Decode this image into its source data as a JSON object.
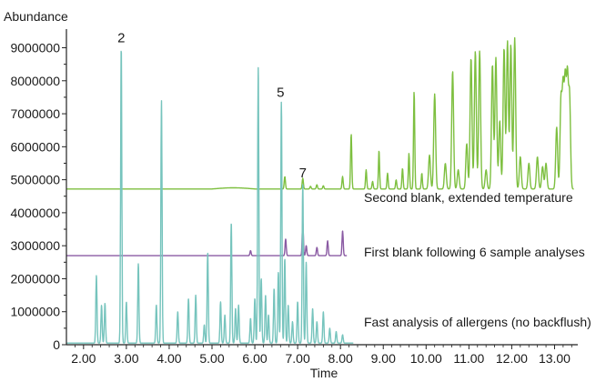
{
  "chart_data": {
    "type": "line",
    "xlabel": "Time",
    "ylabel": "Abundance",
    "xlim": [
      1.6,
      13.5
    ],
    "ylim": [
      0,
      9400000
    ],
    "x_ticks": [
      "2.00",
      "3.00",
      "4.00",
      "5.00",
      "6.00",
      "7.00",
      "8.00",
      "9.00",
      "10.00",
      "11.00",
      "12.00",
      "13.00"
    ],
    "y_ticks": [
      "0",
      "1000000",
      "2000000",
      "3000000",
      "4000000",
      "5000000",
      "6000000",
      "7000000",
      "8000000",
      "9000000"
    ],
    "annotations": [
      {
        "text": "2",
        "x": 2.88,
        "y": 9000000
      },
      {
        "text": "5",
        "x": 6.6,
        "y": 7350000
      },
      {
        "text": "7",
        "x": 7.12,
        "y": 4900000
      }
    ],
    "series": [
      {
        "name": "Second blank, extended temperature",
        "color": "#7dbf3f",
        "baseline": 4720000,
        "x_range": [
          1.6,
          13.45
        ],
        "peaks": [
          {
            "x": 6.7,
            "y": 5100000
          },
          {
            "x": 7.12,
            "y": 5050000
          },
          {
            "x": 7.3,
            "y": 4800000
          },
          {
            "x": 7.45,
            "y": 4850000
          },
          {
            "x": 7.6,
            "y": 4820000
          },
          {
            "x": 8.05,
            "y": 5100000
          },
          {
            "x": 8.25,
            "y": 6400000
          },
          {
            "x": 8.6,
            "y": 5300000
          },
          {
            "x": 8.75,
            "y": 4950000
          },
          {
            "x": 8.9,
            "y": 5900000
          },
          {
            "x": 9.1,
            "y": 5200000
          },
          {
            "x": 9.3,
            "y": 5000000
          },
          {
            "x": 9.45,
            "y": 5350000
          },
          {
            "x": 9.6,
            "y": 5800000
          },
          {
            "x": 9.72,
            "y": 7700000
          },
          {
            "x": 9.9,
            "y": 5200000
          },
          {
            "x": 10.08,
            "y": 5750000
          },
          {
            "x": 10.2,
            "y": 7600000
          },
          {
            "x": 10.45,
            "y": 5500000
          },
          {
            "x": 10.62,
            "y": 8300000
          },
          {
            "x": 10.75,
            "y": 5300000
          },
          {
            "x": 10.95,
            "y": 6100000
          },
          {
            "x": 11.05,
            "y": 8700000
          },
          {
            "x": 11.15,
            "y": 8900000
          },
          {
            "x": 11.25,
            "y": 8900000
          },
          {
            "x": 11.4,
            "y": 5300000
          },
          {
            "x": 11.55,
            "y": 8500000
          },
          {
            "x": 11.63,
            "y": 8700000
          },
          {
            "x": 11.72,
            "y": 6800000
          },
          {
            "x": 11.82,
            "y": 9000000
          },
          {
            "x": 11.9,
            "y": 9200000
          },
          {
            "x": 11.98,
            "y": 9100000
          },
          {
            "x": 12.07,
            "y": 9300000
          },
          {
            "x": 12.2,
            "y": 5700000
          },
          {
            "x": 12.4,
            "y": 5500000
          },
          {
            "x": 12.6,
            "y": 5700000
          },
          {
            "x": 12.72,
            "y": 5400000
          },
          {
            "x": 12.8,
            "y": 5500000
          },
          {
            "x": 13.05,
            "y": 6600000
          },
          {
            "x": 13.15,
            "y": 7400000
          },
          {
            "x": 13.2,
            "y": 7700000
          },
          {
            "x": 13.25,
            "y": 7900000
          },
          {
            "x": 13.3,
            "y": 8000000
          },
          {
            "x": 13.35,
            "y": 7500000
          }
        ]
      },
      {
        "name": "First blank following 6 sample analyses",
        "color": "#8a5aa3",
        "baseline": 2700000,
        "x_range": [
          1.6,
          8.15
        ],
        "peaks": [
          {
            "x": 5.9,
            "y": 2850000
          },
          {
            "x": 6.72,
            "y": 3200000
          },
          {
            "x": 7.12,
            "y": 3700000
          },
          {
            "x": 7.2,
            "y": 3000000
          },
          {
            "x": 7.45,
            "y": 2950000
          },
          {
            "x": 7.7,
            "y": 3150000
          },
          {
            "x": 8.05,
            "y": 3450000
          }
        ]
      },
      {
        "name": "Fast analysis of allergens (no backflush)",
        "color": "#76c4bd",
        "baseline": 50000,
        "x_range": [
          1.6,
          8.3
        ],
        "peaks": [
          {
            "x": 2.3,
            "y": 2100000
          },
          {
            "x": 2.42,
            "y": 1200000
          },
          {
            "x": 2.5,
            "y": 1250000
          },
          {
            "x": 2.88,
            "y": 9000000
          },
          {
            "x": 3.0,
            "y": 1300000
          },
          {
            "x": 3.28,
            "y": 2450000
          },
          {
            "x": 3.7,
            "y": 1200000
          },
          {
            "x": 3.82,
            "y": 7400000
          },
          {
            "x": 4.2,
            "y": 1000000
          },
          {
            "x": 4.45,
            "y": 1400000
          },
          {
            "x": 4.62,
            "y": 1500000
          },
          {
            "x": 4.82,
            "y": 600000
          },
          {
            "x": 4.9,
            "y": 2800000
          },
          {
            "x": 5.2,
            "y": 1300000
          },
          {
            "x": 5.3,
            "y": 900000
          },
          {
            "x": 5.45,
            "y": 3700000
          },
          {
            "x": 5.55,
            "y": 1100000
          },
          {
            "x": 5.62,
            "y": 1200000
          },
          {
            "x": 5.9,
            "y": 800000
          },
          {
            "x": 6.0,
            "y": 1400000
          },
          {
            "x": 6.08,
            "y": 8400000
          },
          {
            "x": 6.15,
            "y": 2000000
          },
          {
            "x": 6.25,
            "y": 1500000
          },
          {
            "x": 6.32,
            "y": 900000
          },
          {
            "x": 6.45,
            "y": 1700000
          },
          {
            "x": 6.55,
            "y": 2200000
          },
          {
            "x": 6.62,
            "y": 7350000
          },
          {
            "x": 6.7,
            "y": 2600000
          },
          {
            "x": 6.78,
            "y": 1200000
          },
          {
            "x": 6.88,
            "y": 700000
          },
          {
            "x": 7.0,
            "y": 1300000
          },
          {
            "x": 7.12,
            "y": 4900000
          },
          {
            "x": 7.2,
            "y": 2500000
          },
          {
            "x": 7.35,
            "y": 1100000
          },
          {
            "x": 7.45,
            "y": 700000
          },
          {
            "x": 7.6,
            "y": 1000000
          },
          {
            "x": 7.75,
            "y": 500000
          },
          {
            "x": 7.9,
            "y": 400000
          },
          {
            "x": 8.05,
            "y": 300000
          }
        ]
      }
    ]
  }
}
